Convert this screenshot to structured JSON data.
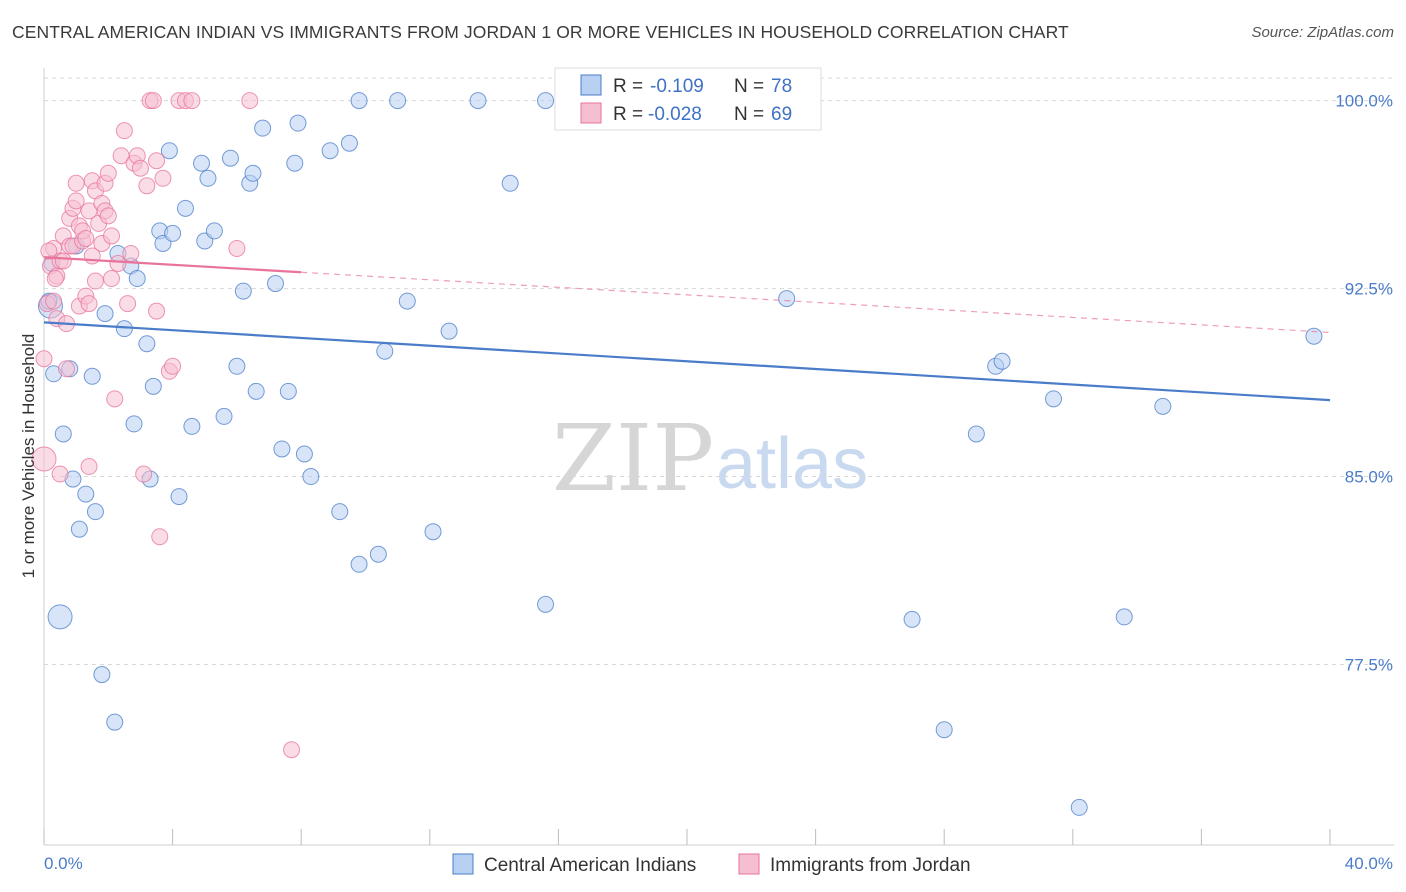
{
  "title": "CENTRAL AMERICAN INDIAN VS IMMIGRANTS FROM JORDAN 1 OR MORE VEHICLES IN HOUSEHOLD CORRELATION CHART",
  "source": "Source: ZipAtlas.com",
  "watermark": {
    "zip": "ZIP",
    "atlas": "atlas"
  },
  "colors": {
    "blue": "#4a7cc9",
    "blue_fill": "#b8d0f2",
    "pink": "#e8739b",
    "pink_fill": "#f6bfd1",
    "grid": "#d8d8d8"
  },
  "legend": {
    "r_label": "R =",
    "n_label": "N =",
    "rows": [
      {
        "r": "-0.109",
        "n": "78"
      },
      {
        "r": "-0.028",
        "n": "69"
      }
    ]
  },
  "chart_data": {
    "type": "scatter",
    "title": "CENTRAL AMERICAN INDIAN VS IMMIGRANTS FROM JORDAN 1 OR MORE VEHICLES IN HOUSEHOLD CORRELATION CHART",
    "xlabel": "",
    "ylabel": "1 or more Vehicles in Household",
    "xlim": [
      0,
      40
    ],
    "ylim": [
      70.3,
      101.3
    ],
    "x_tick_labels": [
      "0.0%",
      "40.0%"
    ],
    "y_ticks": [
      77.5,
      85.0,
      92.5,
      100.0
    ],
    "y_tick_labels": [
      "77.5%",
      "85.0%",
      "92.5%",
      "100.0%"
    ],
    "grid": true,
    "series": [
      {
        "name": "Central American Indians",
        "r": -0.109,
        "n": 78,
        "trend": {
          "x": [
            0,
            40
          ],
          "y": [
            91.15,
            88.05
          ],
          "dashed_to": null
        },
        "points": [
          [
            0.2,
            91.8
          ],
          [
            0.3,
            89.1
          ],
          [
            0.5,
            79.4
          ],
          [
            0.6,
            86.7
          ],
          [
            0.8,
            89.3
          ],
          [
            0.9,
            84.9
          ],
          [
            1.1,
            82.9
          ],
          [
            1.3,
            84.3
          ],
          [
            1.5,
            89.0
          ],
          [
            1.6,
            83.6
          ],
          [
            1.8,
            77.1
          ],
          [
            1.9,
            91.5
          ],
          [
            2.2,
            75.2
          ],
          [
            2.3,
            93.9
          ],
          [
            2.5,
            90.9
          ],
          [
            2.7,
            93.4
          ],
          [
            2.8,
            87.1
          ],
          [
            2.9,
            92.9
          ],
          [
            3.2,
            90.3
          ],
          [
            3.3,
            84.9
          ],
          [
            3.4,
            88.6
          ],
          [
            3.6,
            94.8
          ],
          [
            3.7,
            94.3
          ],
          [
            3.9,
            98.0
          ],
          [
            4.0,
            94.7
          ],
          [
            4.2,
            84.2
          ],
          [
            4.4,
            95.7
          ],
          [
            4.6,
            87.0
          ],
          [
            4.9,
            97.5
          ],
          [
            5.0,
            94.4
          ],
          [
            5.1,
            96.9
          ],
          [
            5.3,
            94.8
          ],
          [
            5.6,
            87.4
          ],
          [
            5.8,
            97.7
          ],
          [
            6.0,
            89.4
          ],
          [
            6.2,
            92.4
          ],
          [
            6.4,
            96.7
          ],
          [
            6.5,
            97.1
          ],
          [
            6.6,
            88.4
          ],
          [
            6.8,
            98.9
          ],
          [
            7.2,
            92.7
          ],
          [
            7.4,
            86.1
          ],
          [
            7.6,
            88.4
          ],
          [
            7.8,
            97.5
          ],
          [
            7.9,
            99.1
          ],
          [
            8.1,
            85.9
          ],
          [
            8.3,
            85.0
          ],
          [
            8.9,
            98.0
          ],
          [
            9.2,
            83.6
          ],
          [
            9.5,
            98.3
          ],
          [
            9.8,
            100.0
          ],
          [
            9.8,
            81.5
          ],
          [
            10.4,
            81.9
          ],
          [
            10.6,
            90.0
          ],
          [
            11.0,
            100.0
          ],
          [
            11.3,
            92.0
          ],
          [
            12.1,
            82.8
          ],
          [
            12.6,
            90.8
          ],
          [
            13.5,
            100.0
          ],
          [
            14.5,
            96.7
          ],
          [
            15.6,
            79.9
          ],
          [
            15.6,
            100.0
          ],
          [
            17.6,
            100.0
          ],
          [
            22.5,
            100.0
          ],
          [
            23.1,
            92.1
          ],
          [
            27.0,
            79.3
          ],
          [
            28.0,
            74.9
          ],
          [
            29.0,
            86.7
          ],
          [
            29.6,
            89.4
          ],
          [
            29.8,
            89.6
          ],
          [
            31.4,
            88.1
          ],
          [
            32.2,
            71.8
          ],
          [
            33.6,
            79.4
          ],
          [
            34.8,
            87.8
          ],
          [
            39.5,
            90.6
          ],
          [
            0.15,
            92.0
          ],
          [
            0.25,
            93.5
          ],
          [
            1.0,
            94.2
          ]
        ]
      },
      {
        "name": "Immigrants from Jordan",
        "r": -0.028,
        "n": 69,
        "trend": {
          "x": [
            0,
            8
          ],
          "y": [
            93.75,
            93.15
          ],
          "dashed_to": [
            40,
            90.75
          ]
        },
        "points": [
          [
            0.0,
            85.7
          ],
          [
            0.0,
            89.7
          ],
          [
            0.1,
            91.9
          ],
          [
            0.2,
            93.4
          ],
          [
            0.3,
            92.0
          ],
          [
            0.3,
            94.1
          ],
          [
            0.4,
            93.0
          ],
          [
            0.4,
            91.3
          ],
          [
            0.5,
            93.6
          ],
          [
            0.5,
            85.1
          ],
          [
            0.6,
            94.6
          ],
          [
            0.7,
            91.1
          ],
          [
            0.7,
            89.3
          ],
          [
            0.8,
            94.2
          ],
          [
            0.8,
            95.3
          ],
          [
            0.9,
            95.7
          ],
          [
            0.9,
            94.2
          ],
          [
            1.0,
            96.0
          ],
          [
            1.0,
            96.7
          ],
          [
            1.1,
            95.0
          ],
          [
            1.1,
            91.8
          ],
          [
            1.2,
            94.4
          ],
          [
            1.2,
            94.8
          ],
          [
            1.3,
            94.5
          ],
          [
            1.3,
            92.2
          ],
          [
            1.4,
            95.6
          ],
          [
            1.4,
            91.9
          ],
          [
            1.4,
            85.4
          ],
          [
            1.5,
            96.8
          ],
          [
            1.5,
            93.8
          ],
          [
            1.6,
            92.8
          ],
          [
            1.6,
            96.4
          ],
          [
            1.7,
            95.1
          ],
          [
            1.8,
            94.3
          ],
          [
            1.8,
            95.9
          ],
          [
            1.9,
            95.6
          ],
          [
            1.9,
            96.7
          ],
          [
            2.0,
            97.1
          ],
          [
            2.0,
            95.4
          ],
          [
            2.1,
            94.6
          ],
          [
            2.1,
            92.9
          ],
          [
            2.2,
            88.1
          ],
          [
            2.3,
            93.5
          ],
          [
            2.4,
            97.8
          ],
          [
            2.5,
            98.8
          ],
          [
            2.6,
            91.9
          ],
          [
            2.7,
            93.9
          ],
          [
            2.8,
            97.5
          ],
          [
            2.9,
            97.8
          ],
          [
            3.0,
            97.3
          ],
          [
            3.1,
            85.1
          ],
          [
            3.2,
            96.6
          ],
          [
            3.3,
            100.0
          ],
          [
            3.4,
            100.0
          ],
          [
            3.5,
            91.6
          ],
          [
            3.5,
            97.6
          ],
          [
            3.6,
            82.6
          ],
          [
            3.7,
            96.9
          ],
          [
            3.9,
            89.2
          ],
          [
            4.0,
            89.4
          ],
          [
            4.2,
            100.0
          ],
          [
            4.4,
            100.0
          ],
          [
            4.6,
            100.0
          ],
          [
            6.0,
            94.1
          ],
          [
            6.4,
            100.0
          ],
          [
            7.7,
            74.1
          ],
          [
            0.15,
            94.0
          ],
          [
            0.35,
            92.9
          ],
          [
            0.6,
            93.6
          ]
        ]
      }
    ]
  },
  "bottom_legend": [
    "Central American Indians",
    "Immigrants from Jordan"
  ]
}
